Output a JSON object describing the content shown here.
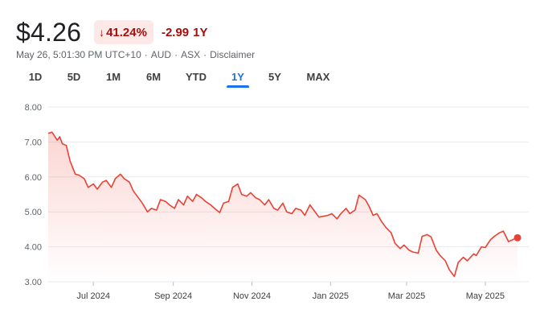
{
  "quote": {
    "price": "$4.26",
    "percent_change": "41.24%",
    "change_direction_icon": "arrow-down-icon",
    "absolute_change": "-2.99",
    "change_period": "1Y",
    "timestamp": "May 26, 5:01:30 PM UTC+10",
    "currency": "AUD",
    "exchange": "ASX",
    "disclaimer_label": "Disclaimer",
    "negative_color": "#a50e0e",
    "badge_bg_color": "#fce8e6"
  },
  "range_tabs": [
    {
      "label": "1D",
      "active": false
    },
    {
      "label": "5D",
      "active": false
    },
    {
      "label": "1M",
      "active": false
    },
    {
      "label": "6M",
      "active": false
    },
    {
      "label": "YTD",
      "active": false
    },
    {
      "label": "1Y",
      "active": true
    },
    {
      "label": "5Y",
      "active": false
    },
    {
      "label": "MAX",
      "active": false
    }
  ],
  "accent_color": "#1a73e8",
  "chart_data": {
    "type": "area",
    "title": "",
    "xlabel": "",
    "ylabel": "",
    "ylim": [
      3.0,
      8.0
    ],
    "y_ticks": [
      "8.00",
      "7.00",
      "6.00",
      "5.00",
      "4.00",
      "3.00"
    ],
    "x_tick_labels": [
      {
        "label": "Jul 2024",
        "date": "2024-07-01"
      },
      {
        "label": "Sep 2024",
        "date": "2024-09-01"
      },
      {
        "label": "Nov 2024",
        "date": "2024-11-01"
      },
      {
        "label": "Jan 2025",
        "date": "2025-01-01"
      },
      {
        "label": "Mar 2025",
        "date": "2025-03-01"
      },
      {
        "label": "May 2025",
        "date": "2025-05-01"
      }
    ],
    "xlim": [
      "2024-05-27",
      "2025-05-26"
    ],
    "grid": true,
    "line_color": "#e94235",
    "series": [
      {
        "x": [
          "2024-05-27",
          "2024-05-30",
          "2024-06-03",
          "2024-06-05",
          "2024-06-07",
          "2024-06-10",
          "2024-06-13",
          "2024-06-17",
          "2024-06-20",
          "2024-06-24",
          "2024-06-27",
          "2024-07-01",
          "2024-07-04",
          "2024-07-08",
          "2024-07-11",
          "2024-07-15",
          "2024-07-18",
          "2024-07-22",
          "2024-07-25",
          "2024-07-29",
          "2024-08-01",
          "2024-08-05",
          "2024-08-08",
          "2024-08-12",
          "2024-08-15",
          "2024-08-19",
          "2024-08-22",
          "2024-08-26",
          "2024-08-29",
          "2024-09-02",
          "2024-09-05",
          "2024-09-09",
          "2024-09-12",
          "2024-09-16",
          "2024-09-19",
          "2024-09-23",
          "2024-09-26",
          "2024-09-30",
          "2024-10-03",
          "2024-10-07",
          "2024-10-10",
          "2024-10-14",
          "2024-10-17",
          "2024-10-21",
          "2024-10-24",
          "2024-10-28",
          "2024-10-31",
          "2024-11-04",
          "2024-11-07",
          "2024-11-11",
          "2024-11-14",
          "2024-11-18",
          "2024-11-21",
          "2024-11-25",
          "2024-11-28",
          "2024-12-02",
          "2024-12-05",
          "2024-12-09",
          "2024-12-12",
          "2024-12-16",
          "2024-12-19",
          "2024-12-23",
          "2024-12-30",
          "2025-01-02",
          "2025-01-06",
          "2025-01-09",
          "2025-01-13",
          "2025-01-16",
          "2025-01-20",
          "2025-01-23",
          "2025-01-28",
          "2025-01-31",
          "2025-02-03",
          "2025-02-06",
          "2025-02-10",
          "2025-02-13",
          "2025-02-17",
          "2025-02-20",
          "2025-02-24",
          "2025-02-27",
          "2025-03-03",
          "2025-03-06",
          "2025-03-10",
          "2025-03-13",
          "2025-03-17",
          "2025-03-20",
          "2025-03-24",
          "2025-03-27",
          "2025-03-31",
          "2025-04-03",
          "2025-04-07",
          "2025-04-10",
          "2025-04-14",
          "2025-04-17",
          "2025-04-22",
          "2025-04-24",
          "2025-04-28",
          "2025-05-01",
          "2025-05-05",
          "2025-05-08",
          "2025-05-12",
          "2025-05-15",
          "2025-05-19",
          "2025-05-22",
          "2025-05-26"
        ],
        "y": [
          7.25,
          7.28,
          7.05,
          7.15,
          6.95,
          6.9,
          6.45,
          6.08,
          6.05,
          5.95,
          5.7,
          5.8,
          5.65,
          5.85,
          5.9,
          5.7,
          5.95,
          6.08,
          5.95,
          5.85,
          5.6,
          5.4,
          5.25,
          5.0,
          5.1,
          5.05,
          5.35,
          5.3,
          5.2,
          5.1,
          5.35,
          5.2,
          5.45,
          5.3,
          5.5,
          5.4,
          5.3,
          5.2,
          5.1,
          4.98,
          5.25,
          5.3,
          5.7,
          5.8,
          5.5,
          5.45,
          5.55,
          5.4,
          5.35,
          5.2,
          5.35,
          5.1,
          5.05,
          5.25,
          5.0,
          4.95,
          5.1,
          5.05,
          4.9,
          5.2,
          5.05,
          4.85,
          4.9,
          4.95,
          4.8,
          4.95,
          5.1,
          4.95,
          5.05,
          5.48,
          5.35,
          5.15,
          4.9,
          4.95,
          4.7,
          4.55,
          4.4,
          4.1,
          3.95,
          4.05,
          3.9,
          3.85,
          3.82,
          4.3,
          4.35,
          4.28,
          3.9,
          3.75,
          3.6,
          3.35,
          3.15,
          3.55,
          3.7,
          3.6,
          3.8,
          3.75,
          4.0,
          3.98,
          4.2,
          4.3,
          4.4,
          4.45,
          4.15,
          4.2,
          4.26
        ]
      }
    ]
  }
}
